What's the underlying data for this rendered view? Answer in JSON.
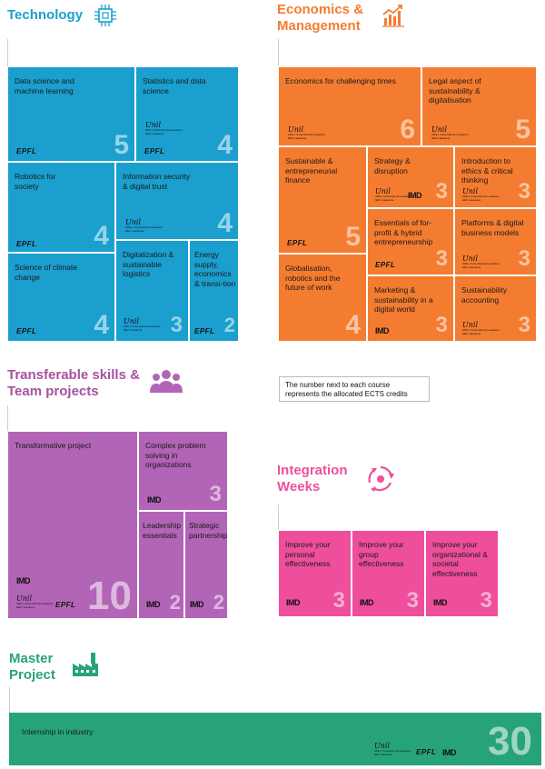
{
  "colors": {
    "technology": "#1a9fcf",
    "economics": "#f47c30",
    "transferable": "#b264b6",
    "integration": "#ee4e9c",
    "master": "#27a37c",
    "tile_text": "#1a1a1a"
  },
  "logos": {
    "epfl": "EPFL",
    "imd": "IMD",
    "unil": "Unil",
    "unil_sub_1": "UNIL | Université de Lausanne",
    "unil_sub_2": "HEC Lausanne"
  },
  "technology": {
    "title": "Technology",
    "icon": "chip-icon",
    "tiles": [
      {
        "label": "Data science and machine learning",
        "ects": "5"
      },
      {
        "label": "Statistics and data science",
        "ects": "4"
      },
      {
        "label": "Robotics for society",
        "ects": "4"
      },
      {
        "label": "Information security & digital trust",
        "ects": "4"
      },
      {
        "label": "Science of climate change",
        "ects": "4"
      },
      {
        "label": "Digitalization & sustainable logistics",
        "ects": "3"
      },
      {
        "label": "Energy supply, economics & transi-tion",
        "ects": "2"
      }
    ]
  },
  "economics": {
    "title_line1": "Economics &",
    "title_line2": "Management",
    "icon": "bar-chart-icon",
    "tiles": [
      {
        "label": "Economics for challenging times",
        "ects": "6"
      },
      {
        "label": "Legal aspect of sustainability & digitalisation",
        "ects": "5"
      },
      {
        "label": "Sustainable & entrepreneurial finance",
        "ects": "5"
      },
      {
        "label": "Strategy & disruption",
        "ects": "3"
      },
      {
        "label": "Introduction to ethics & critical thinking",
        "ects": "3"
      },
      {
        "label": "Essentials of for-profit & hybrid entrepreneurship",
        "ects": "3"
      },
      {
        "label": "Platforms & digital business models",
        "ects": "3"
      },
      {
        "label": "Globalisation, robotics and the future of work",
        "ects": "4"
      },
      {
        "label": "Marketing & sustainability in a digital world",
        "ects": "3"
      },
      {
        "label": "Sustainability accounting",
        "ects": "3"
      }
    ]
  },
  "transferable": {
    "title_line1": "Transferable skills &",
    "title_line2": "Team projects",
    "icon": "team-icon",
    "tiles": [
      {
        "label": "Transformative project",
        "ects": "10"
      },
      {
        "label": "Complex problem solving in organizations",
        "ects": "3"
      },
      {
        "label": "Leadership essentials",
        "ects": "2"
      },
      {
        "label": "Strategic partnership",
        "ects": "2"
      }
    ]
  },
  "note": {
    "line1": "The number next to each course",
    "line2": "represents the allocated ECTS credits"
  },
  "integration": {
    "title_line1": "Integration",
    "title_line2": "Weeks",
    "icon": "cycle-icon",
    "tiles": [
      {
        "label": "Improve your personal effectiveness",
        "ects": "3"
      },
      {
        "label": "Improve your group effectiveness",
        "ects": "3"
      },
      {
        "label": "Improve your organizational & societal effectiveness",
        "ects": "3"
      }
    ]
  },
  "master": {
    "title_line1": "Master",
    "title_line2": "Project",
    "icon": "factory-icon",
    "tiles": [
      {
        "label": "Internship in industry",
        "ects": "30"
      }
    ]
  }
}
